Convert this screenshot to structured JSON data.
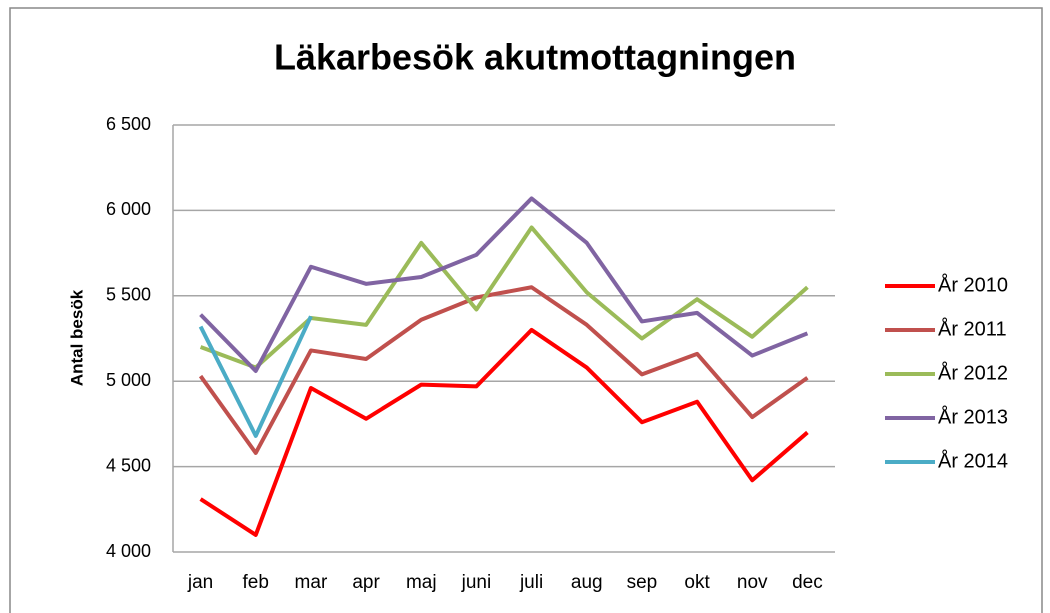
{
  "chart_data": {
    "type": "line",
    "title": "Läkarbesök akutmottagningen",
    "y_label": "Antal besök",
    "categories": [
      "jan",
      "feb",
      "mar",
      "apr",
      "maj",
      "juni",
      "juli",
      "aug",
      "sep",
      "okt",
      "nov",
      "dec"
    ],
    "series": [
      {
        "name": "År 2010",
        "color": "#ff0000",
        "values": [
          4310,
          4100,
          4960,
          4780,
          4980,
          4970,
          5300,
          5080,
          4760,
          4880,
          4420,
          4700
        ]
      },
      {
        "name": "År 2011",
        "color": "#c0504d",
        "values": [
          5030,
          4580,
          5180,
          5130,
          5360,
          5490,
          5550,
          5330,
          5040,
          5160,
          4790,
          5020
        ]
      },
      {
        "name": "År 2012",
        "color": "#9bbb59",
        "values": [
          5200,
          5080,
          5370,
          5330,
          5810,
          5420,
          5900,
          5520,
          5250,
          5480,
          5260,
          5550
        ]
      },
      {
        "name": "År 2013",
        "color": "#8064a2",
        "values": [
          5390,
          5060,
          5670,
          5570,
          5610,
          5740,
          6070,
          5810,
          5350,
          5400,
          5150,
          5280
        ]
      },
      {
        "name": "År 2014",
        "color": "#4bacc6",
        "values": [
          5320,
          4680,
          5380,
          null,
          null,
          null,
          null,
          null,
          null,
          null,
          null,
          null
        ]
      }
    ],
    "ylim": [
      4000,
      6500
    ],
    "yticks": [
      {
        "value": 4000,
        "label": "4 000"
      },
      {
        "value": 4500,
        "label": "4 500"
      },
      {
        "value": 5000,
        "label": "5 000"
      },
      {
        "value": 5500,
        "label": "5 500"
      },
      {
        "value": 6000,
        "label": "6 000"
      },
      {
        "value": 6500,
        "label": "6 500"
      }
    ],
    "grid": true,
    "legend": "right"
  }
}
